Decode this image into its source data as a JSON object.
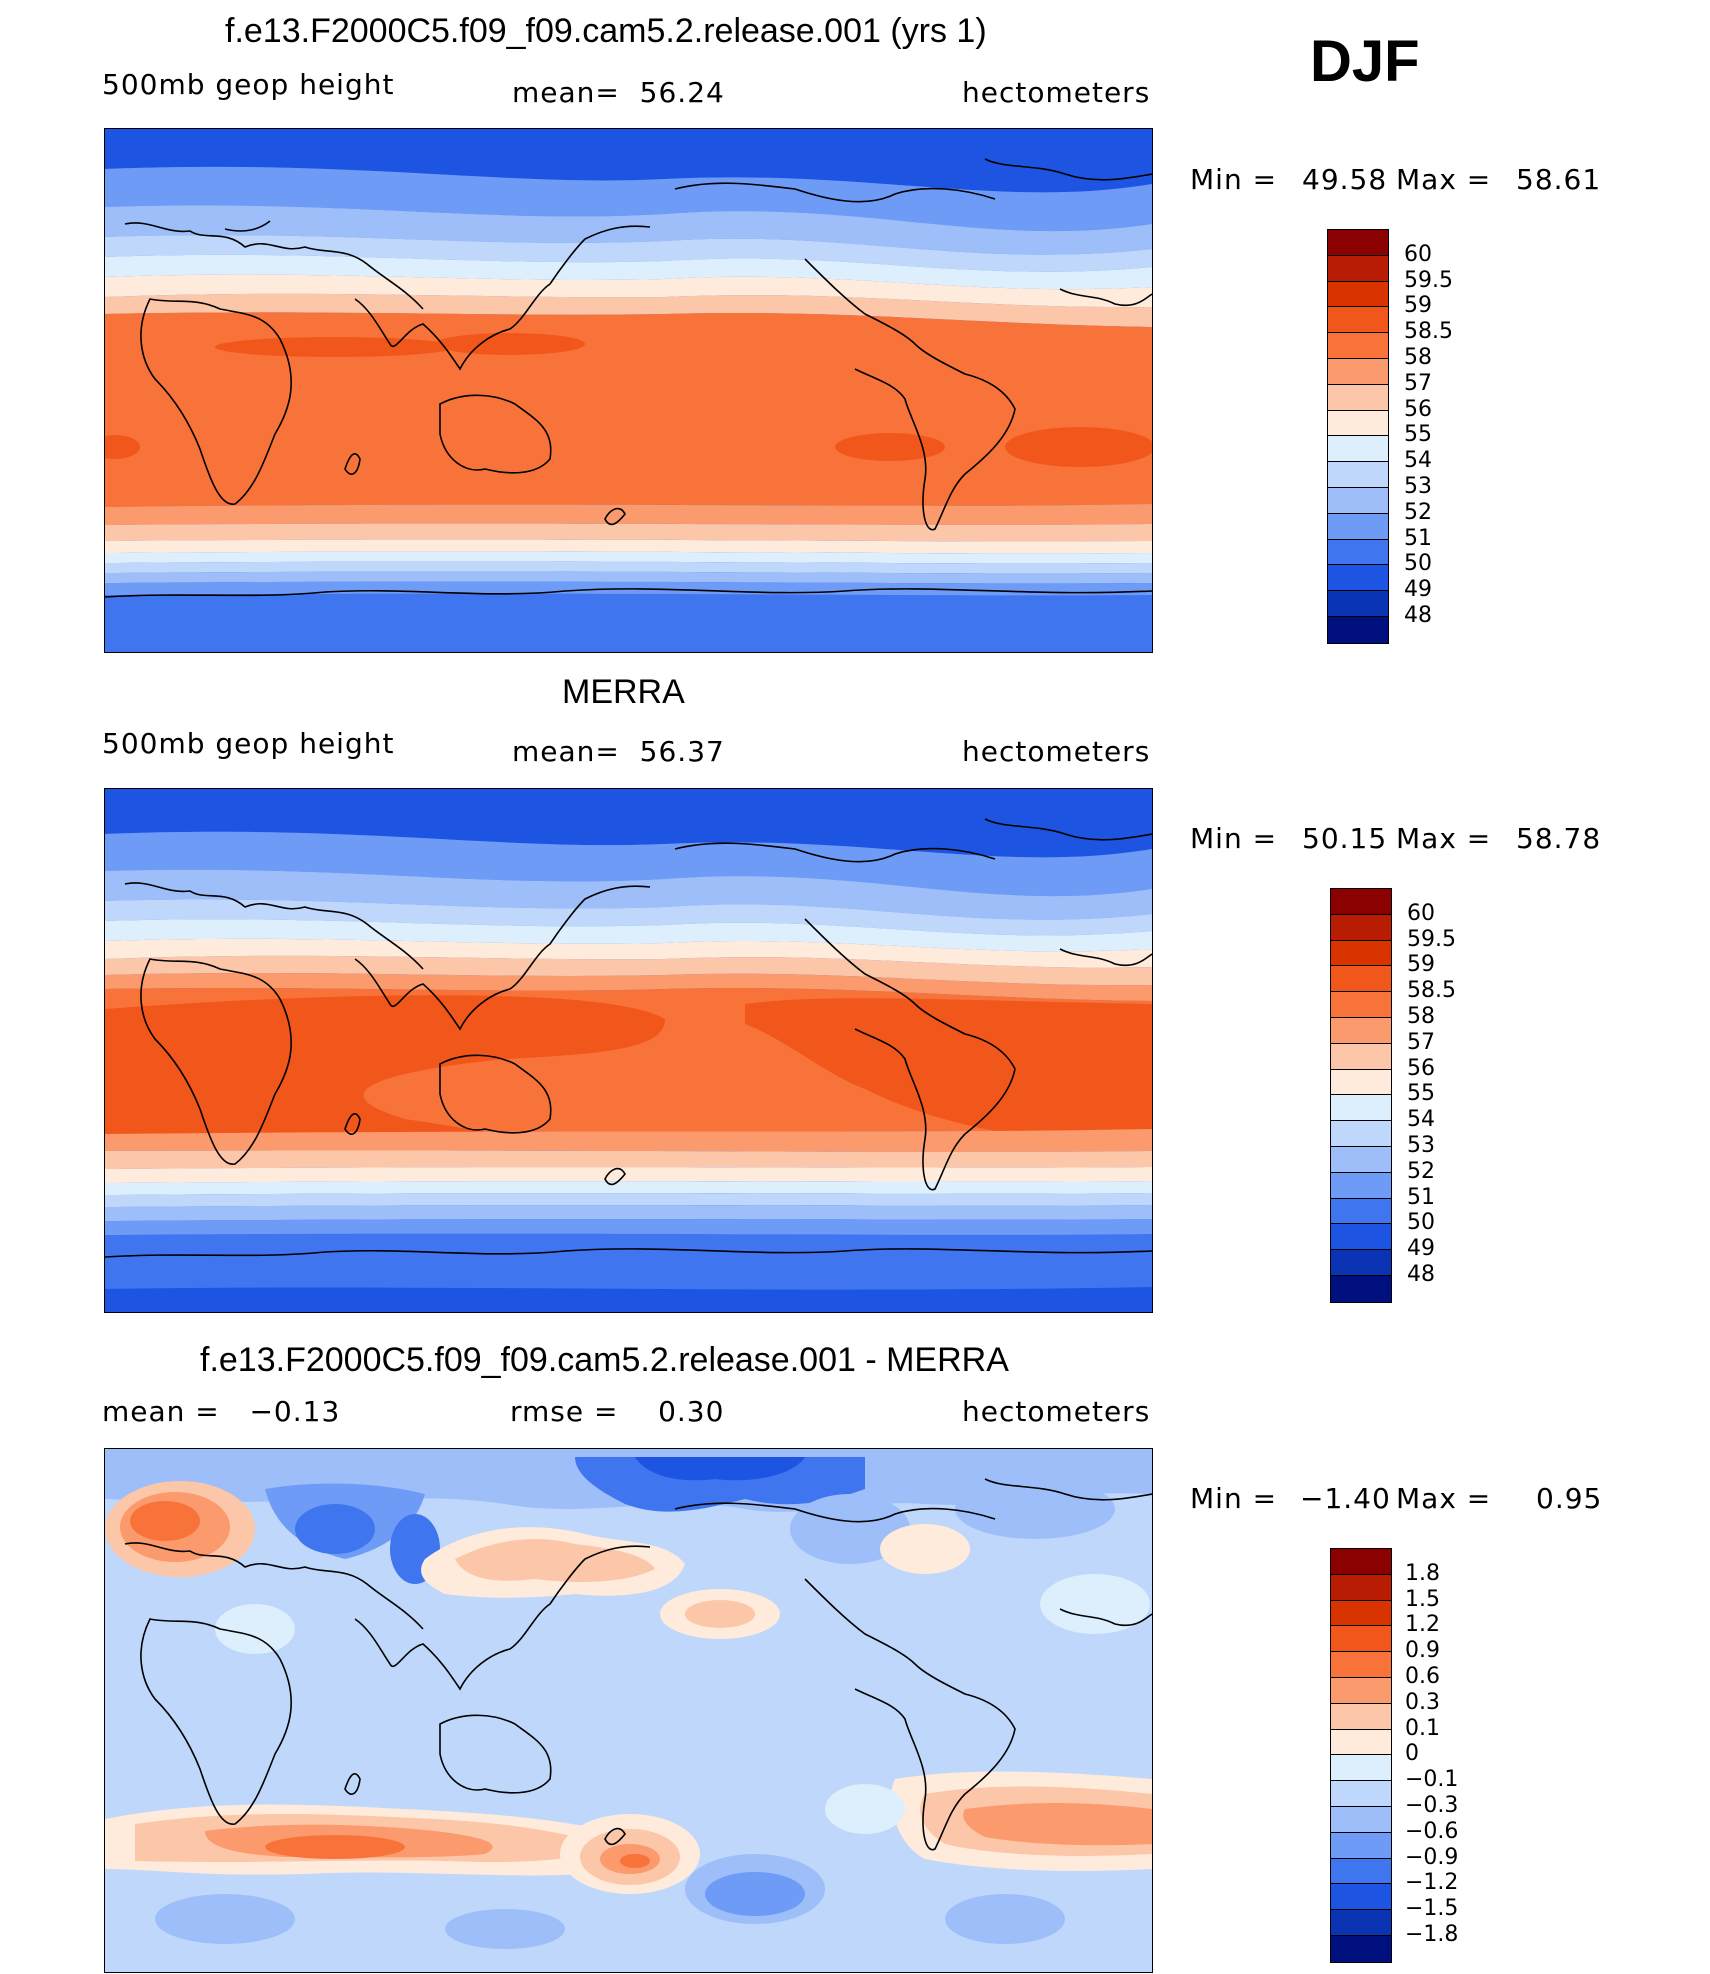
{
  "season": "DJF",
  "panels": [
    {
      "title": "f.e13.F2000C5.f09_f09.cam5.2.release.001 (yrs 1)",
      "left_label": "500mb geop height",
      "center_label": "mean=  56.24",
      "right_label": "hectometers",
      "min_label": "Min =",
      "min_value": "49.58",
      "max_label": "Max =",
      "max_value": "58.61",
      "colorbar": {
        "colors": [
          "#8b0000",
          "#b81c03",
          "#d93300",
          "#f1561b",
          "#f8733a",
          "#fb9a6c",
          "#fcc6a9",
          "#feebdb",
          "#ddeefc",
          "#bed7fb",
          "#9ebefa",
          "#6d9bf6",
          "#3f76f0",
          "#1d55e2",
          "#0a34b4",
          "#00107e"
        ],
        "labels": [
          "60",
          "59.5",
          "59",
          "58.5",
          "58",
          "57",
          "56",
          "55",
          "54",
          "53",
          "52",
          "51",
          "50",
          "49",
          "48"
        ]
      }
    },
    {
      "title": "MERRA",
      "left_label": "500mb geop height",
      "center_label": "mean=  56.37",
      "right_label": "hectometers",
      "min_label": "Min =",
      "min_value": "50.15",
      "max_label": "Max =",
      "max_value": "58.78",
      "colorbar": {
        "colors": [
          "#8b0000",
          "#b81c03",
          "#d93300",
          "#f1561b",
          "#f8733a",
          "#fb9a6c",
          "#fcc6a9",
          "#feebdb",
          "#ddeefc",
          "#bed7fb",
          "#9ebefa",
          "#6d9bf6",
          "#3f76f0",
          "#1d55e2",
          "#0a34b4",
          "#00107e"
        ],
        "labels": [
          "60",
          "59.5",
          "59",
          "58.5",
          "58",
          "57",
          "56",
          "55",
          "54",
          "53",
          "52",
          "51",
          "50",
          "49",
          "48"
        ]
      }
    },
    {
      "title": "f.e13.F2000C5.f09_f09.cam5.2.release.001 - MERRA",
      "left_label": "mean =   −0.13",
      "center_label": "rmse =    0.30",
      "right_label": "hectometers",
      "min_label": "Min =",
      "min_value": "−1.40",
      "max_label": "Max =",
      "max_value": "0.95",
      "colorbar": {
        "colors": [
          "#8b0000",
          "#b81c03",
          "#d93300",
          "#f1561b",
          "#f8733a",
          "#fb9a6c",
          "#fcc6a9",
          "#feebdb",
          "#ddeefc",
          "#bed7fb",
          "#9ebefa",
          "#6d9bf6",
          "#3f76f0",
          "#1d55e2",
          "#0a34b4",
          "#00107e"
        ],
        "labels": [
          "1.8",
          "1.5",
          "1.2",
          "0.9",
          "0.6",
          "0.3",
          "0.1",
          "0",
          "−0.1",
          "−0.3",
          "−0.6",
          "−0.9",
          "−1.2",
          "−1.5",
          "−1.8"
        ]
      }
    }
  ]
}
